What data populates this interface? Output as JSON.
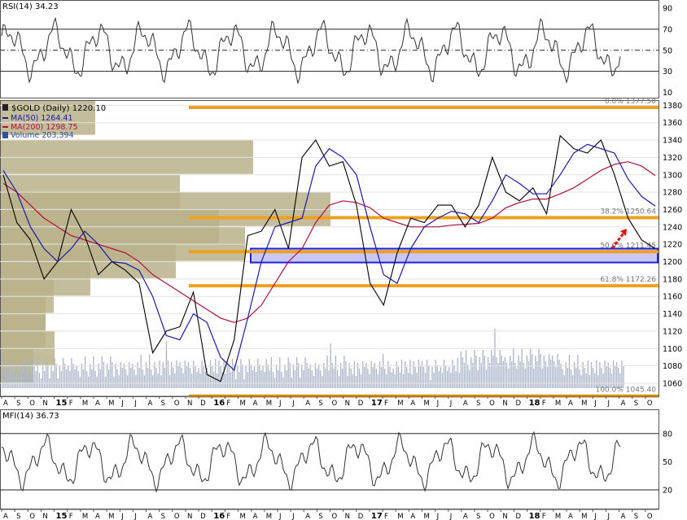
{
  "rsi_panel": {
    "label": "RSI(14) 34.23",
    "levels": [
      70,
      50,
      30
    ],
    "ticks": [
      "90",
      "70",
      "50",
      "30",
      "10"
    ],
    "tick_values": [
      90,
      70,
      50,
      30,
      10
    ],
    "ylim": [
      5,
      97
    ]
  },
  "main_panel": {
    "title": "$GOLD (Daily) 1220.10",
    "legend": [
      {
        "text": "MA(50) 1264.41",
        "color": "#1a1aa6",
        "kind": "line"
      },
      {
        "text": "MA(200) 1298.75",
        "color": "#b0103a",
        "kind": "line"
      },
      {
        "text": "Volume 203,394",
        "color": "#3050a8",
        "kind": "bars"
      }
    ],
    "ylim": [
      1045,
      1385
    ],
    "ticks": [
      "1380",
      "1360",
      "1340",
      "1320",
      "1300",
      "1280",
      "1260",
      "1240",
      "1220",
      "1200",
      "1180",
      "1160",
      "1140",
      "1120",
      "1100",
      "1080",
      "1060"
    ],
    "tick_values": [
      1380,
      1360,
      1340,
      1320,
      1300,
      1280,
      1260,
      1240,
      1220,
      1200,
      1180,
      1160,
      1140,
      1120,
      1100,
      1080,
      1060
    ],
    "fib_levels": [
      {
        "label": "0.0% 1377.50",
        "value": 1377.5
      },
      {
        "label": "38.2% 1250.64",
        "value": 1250.64
      },
      {
        "label": "50.0% 1211.45",
        "value": 1211.45
      },
      {
        "label": "61.8% 1172.26",
        "value": 1172.26
      },
      {
        "label": "100.0% 1045.40",
        "value": 1045.4
      }
    ],
    "support_zone": [
      1199,
      1215
    ],
    "colors": {
      "fib": "#f0a020",
      "zone_fill": "#b7b4f0",
      "zone_edge": "#2222dd",
      "volume_profile": "#b9b28a",
      "price": "#000000",
      "down": "#cc0000",
      "volume": "#aab4c8"
    }
  },
  "x_axis": {
    "labels": [
      "A",
      "S",
      "O",
      "N",
      "15",
      "F",
      "M",
      "A",
      "M",
      "J",
      "J",
      "A",
      "S",
      "O",
      "N",
      "D",
      "16",
      "F",
      "M",
      "A",
      "M",
      "J",
      "J",
      "A",
      "S",
      "O",
      "N",
      "D",
      "17",
      "F",
      "M",
      "A",
      "M",
      "J",
      "J",
      "A",
      "S",
      "O",
      "N",
      "D",
      "18",
      "F",
      "M",
      "A",
      "M",
      "J",
      "J",
      "A",
      "S",
      "O"
    ],
    "year_labels": [
      "15",
      "16",
      "17",
      "18"
    ]
  },
  "mfi_panel": {
    "label": "MFI(14) 36.73",
    "levels": [
      80,
      20
    ],
    "ticks": [
      "80",
      "50",
      "20"
    ],
    "tick_values": [
      80,
      50,
      20
    ],
    "ylim": [
      0,
      105
    ]
  },
  "chart_data": {
    "type": "line",
    "title": "$GOLD (Daily) 1220.10",
    "x": [
      "2014-08",
      "2014-09",
      "2014-10",
      "2014-11",
      "2014-12",
      "2015-01",
      "2015-02",
      "2015-03",
      "2015-04",
      "2015-05",
      "2015-06",
      "2015-07",
      "2015-08",
      "2015-09",
      "2015-10",
      "2015-11",
      "2015-12",
      "2016-01",
      "2016-02",
      "2016-03",
      "2016-04",
      "2016-05",
      "2016-06",
      "2016-07",
      "2016-08",
      "2016-09",
      "2016-10",
      "2016-11",
      "2016-12",
      "2017-01",
      "2017-02",
      "2017-03",
      "2017-04",
      "2017-05",
      "2017-06",
      "2017-07",
      "2017-08",
      "2017-09",
      "2017-10",
      "2017-11",
      "2017-12",
      "2018-01",
      "2018-02",
      "2018-03",
      "2018-04",
      "2018-05",
      "2018-06",
      "2018-07",
      "2018-08"
    ],
    "series": [
      {
        "name": "$GOLD",
        "values": [
          1300,
          1245,
          1225,
          1180,
          1200,
          1260,
          1230,
          1185,
          1200,
          1190,
          1175,
          1095,
          1120,
          1125,
          1165,
          1070,
          1062,
          1110,
          1230,
          1235,
          1260,
          1215,
          1320,
          1340,
          1310,
          1315,
          1265,
          1175,
          1150,
          1210,
          1250,
          1245,
          1265,
          1265,
          1240,
          1265,
          1320,
          1280,
          1270,
          1285,
          1255,
          1345,
          1330,
          1325,
          1340,
          1300,
          1250,
          1225,
          1215
        ]
      },
      {
        "name": "MA(50) 1264.41",
        "values": [
          1305,
          1280,
          1240,
          1215,
          1200,
          1215,
          1235,
          1220,
          1200,
          1198,
          1190,
          1160,
          1115,
          1110,
          1140,
          1130,
          1090,
          1075,
          1135,
          1200,
          1240,
          1245,
          1250,
          1310,
          1330,
          1320,
          1300,
          1240,
          1185,
          1175,
          1215,
          1240,
          1250,
          1258,
          1255,
          1245,
          1270,
          1300,
          1290,
          1278,
          1278,
          1300,
          1325,
          1335,
          1330,
          1325,
          1295,
          1275,
          1264
        ]
      },
      {
        "name": "MA(200) 1298.75",
        "values": [
          1290,
          1280,
          1265,
          1250,
          1240,
          1230,
          1225,
          1220,
          1215,
          1210,
          1200,
          1185,
          1175,
          1165,
          1155,
          1145,
          1135,
          1130,
          1135,
          1150,
          1175,
          1200,
          1215,
          1245,
          1265,
          1270,
          1268,
          1262,
          1250,
          1245,
          1240,
          1240,
          1240,
          1242,
          1243,
          1244,
          1250,
          1262,
          1268,
          1272,
          1272,
          1278,
          1285,
          1295,
          1305,
          1312,
          1315,
          1310,
          1299
        ]
      }
    ],
    "rsi_last": 34.23,
    "mfi_last": 36.73,
    "volume_last": 203394
  }
}
